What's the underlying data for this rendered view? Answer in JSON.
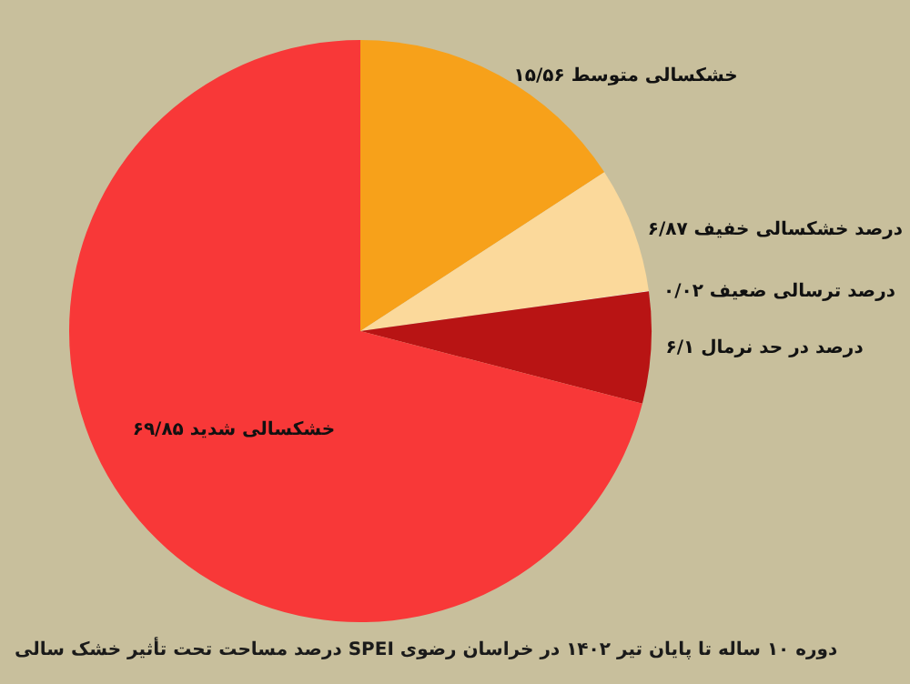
{
  "chart_data": {
    "type": "pie",
    "title": "درصد مساحت تحت تأثیر خشک سالی SPEI دوره ۱۰ ساله تا پایان تیر ۱۴۰۲ در خراسان رضوی",
    "categories": [
      "خشکسالی متوسط",
      "درصد خشکسالی خفیف",
      "درصد ترسالی ضعیف ۰/۰۲",
      "درصد در حد نرمال",
      "خشکسالی شدید"
    ],
    "values": [
      15.56,
      6.87,
      0.02,
      6.1,
      69.85
    ],
    "value_labels": [
      "۱۵/۵۶",
      "۶/۸۷",
      null,
      "۶/۱",
      "۶۹/۸۵"
    ],
    "colors": [
      "#f7a11a",
      "#fbd99b",
      "#ffffff",
      "#b81414",
      "#f83838"
    ]
  }
}
